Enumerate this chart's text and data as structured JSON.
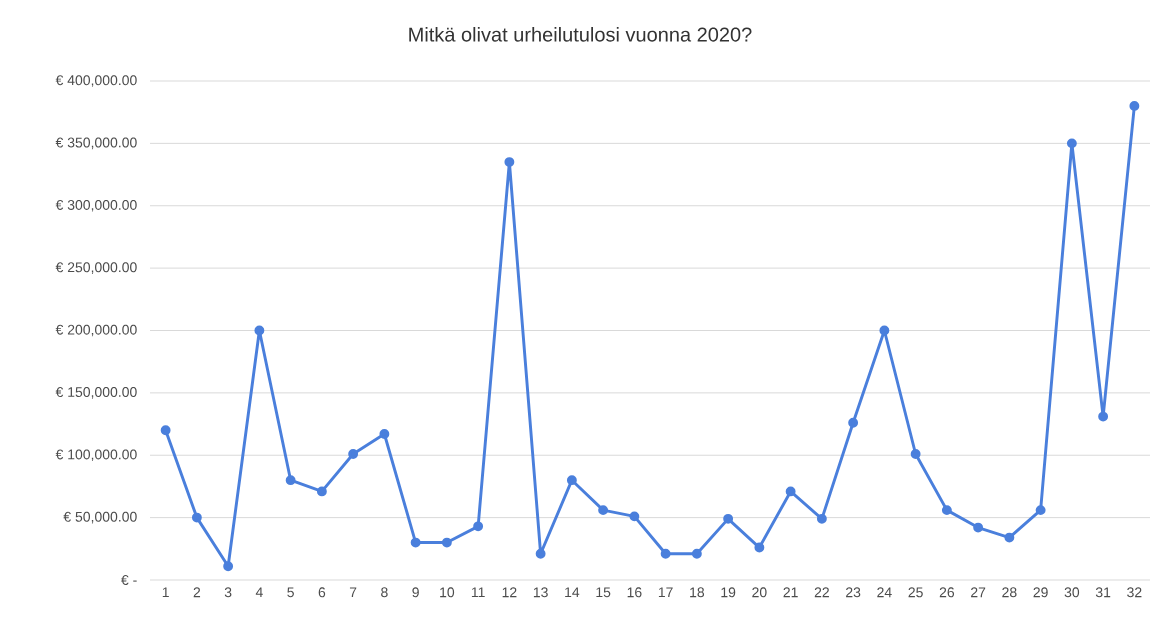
{
  "chart_data": {
    "type": "line",
    "title": "Mitkä olivat urheilutulosi vuonna 2020?",
    "categories": [
      "1",
      "2",
      "3",
      "4",
      "5",
      "6",
      "7",
      "8",
      "9",
      "10",
      "11",
      "12",
      "13",
      "14",
      "15",
      "16",
      "17",
      "18",
      "19",
      "20",
      "21",
      "22",
      "23",
      "24",
      "25",
      "26",
      "27",
      "28",
      "29",
      "30",
      "31",
      "32"
    ],
    "series": [
      {
        "color": "#4a7fdc",
        "values": [
          120000,
          50000,
          11000,
          200000,
          80000,
          71000,
          101000,
          117000,
          30000,
          30000,
          43000,
          335000,
          21000,
          80000,
          56000,
          51000,
          21000,
          21000,
          49000,
          26000,
          71000,
          49000,
          126000,
          200000,
          101000,
          56000,
          42000,
          34000,
          56000,
          350000,
          131000,
          380000
        ]
      }
    ],
    "ylim": [
      0,
      400000
    ],
    "yticks": [
      {
        "value": 0,
        "label": "€ -"
      },
      {
        "value": 50000,
        "label": "€ 50,000.00"
      },
      {
        "value": 100000,
        "label": "€ 100,000.00"
      },
      {
        "value": 150000,
        "label": "€ 150,000.00"
      },
      {
        "value": 200000,
        "label": "€ 200,000.00"
      },
      {
        "value": 250000,
        "label": "€ 250,000.00"
      },
      {
        "value": 300000,
        "label": "€ 300,000.00"
      },
      {
        "value": 350000,
        "label": "€ 350,000.00"
      },
      {
        "value": 400000,
        "label": "€ 400,000.00"
      }
    ],
    "grid": "y",
    "marker": "circle",
    "line_style": "solid"
  }
}
